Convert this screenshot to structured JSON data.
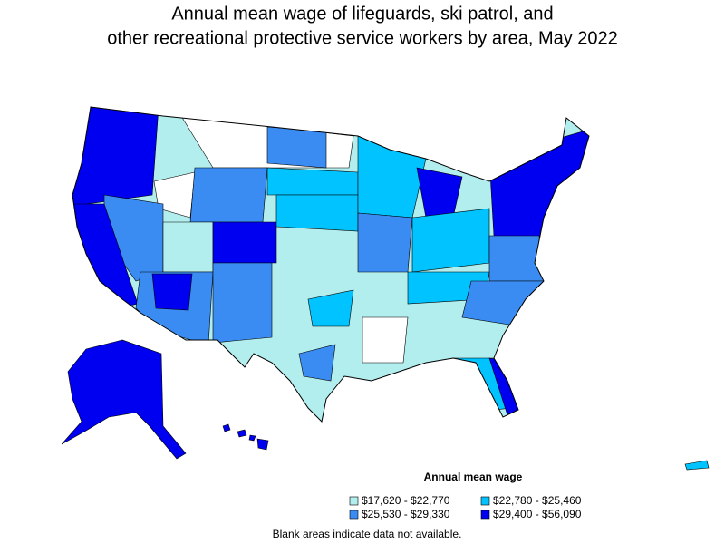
{
  "title": [
    "Annual mean wage of lifeguards, ski patrol, and",
    "other recreational protective service workers by area, May 2022"
  ],
  "legend": {
    "title": "Annual mean wage",
    "items": [
      {
        "label": "$17,620 - $22,770",
        "color": "#b3eeee"
      },
      {
        "label": "$22,780 - $25,460",
        "color": "#00c3ff"
      },
      {
        "label": "$25,530 - $29,330",
        "color": "#3a8cf2"
      },
      {
        "label": "$29,400 - $56,090",
        "color": "#0000f0"
      }
    ]
  },
  "note": "Blank areas indicate data not available."
}
